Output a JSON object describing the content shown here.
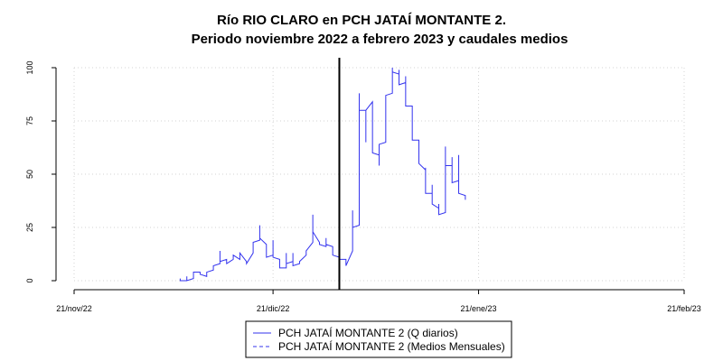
{
  "chart_data": {
    "type": "line",
    "title": "Río RIO CLARO en PCH JATAÍ MONTANTE 2.",
    "subtitle": "Periodo noviembre 2022 a febrero 2023 y caudales medios",
    "xlabel": "",
    "ylabel": "",
    "ylim": [
      0,
      100
    ],
    "yticks": [
      0,
      25,
      50,
      75,
      100
    ],
    "y_tick_labels": [
      "0",
      "25",
      "50",
      "75",
      "100"
    ],
    "x_range": [
      "2022-11-21",
      "2023-02-21"
    ],
    "x_tick_dates": [
      "2022-11-21",
      "2022-12-21",
      "2023-01-21",
      "2023-02-21"
    ],
    "x_tick_labels": [
      "21/nov/22",
      "21/dic/22",
      "21/ene/23",
      "21/feb/23"
    ],
    "grid": true,
    "legend_position": "bottom-center",
    "vline_date": "2022-12-31",
    "colors": {
      "series": "#3333ee",
      "vline": "#000000",
      "grid": "#d3d3d3",
      "axis": "#000000"
    },
    "series": [
      {
        "name": "PCH JATAÍ MONTANTE 2 (Q diarios)",
        "style": "solid",
        "points": [
          [
            "2022-12-07",
            1
          ],
          [
            "2022-12-07",
            0
          ],
          [
            "2022-12-08",
            0
          ],
          [
            "2022-12-08",
            2
          ],
          [
            "2022-12-08",
            0
          ],
          [
            "2022-12-09",
            1
          ],
          [
            "2022-12-09",
            4
          ],
          [
            "2022-12-10",
            4
          ],
          [
            "2022-12-10",
            3
          ],
          [
            "2022-12-11",
            2
          ],
          [
            "2022-12-11",
            4
          ],
          [
            "2022-12-12",
            5
          ],
          [
            "2022-12-12",
            7
          ],
          [
            "2022-12-13",
            8
          ],
          [
            "2022-12-13",
            14
          ],
          [
            "2022-12-13",
            9
          ],
          [
            "2022-12-14",
            10
          ],
          [
            "2022-12-14",
            8
          ],
          [
            "2022-12-15",
            10
          ],
          [
            "2022-12-15",
            12
          ],
          [
            "2022-12-16",
            10
          ],
          [
            "2022-12-16",
            13
          ],
          [
            "2022-12-17",
            9
          ],
          [
            "2022-12-17",
            8
          ],
          [
            "2022-12-18",
            13
          ],
          [
            "2022-12-18",
            18
          ],
          [
            "2022-12-19",
            19
          ],
          [
            "2022-12-19",
            26
          ],
          [
            "2022-12-19",
            20
          ],
          [
            "2022-12-20",
            17
          ],
          [
            "2022-12-20",
            11
          ],
          [
            "2022-12-21",
            12
          ],
          [
            "2022-12-21",
            19
          ],
          [
            "2022-12-21",
            11
          ],
          [
            "2022-12-22",
            10
          ],
          [
            "2022-12-22",
            6
          ],
          [
            "2022-12-23",
            6
          ],
          [
            "2022-12-23",
            13
          ],
          [
            "2022-12-23",
            8
          ],
          [
            "2022-12-24",
            9
          ],
          [
            "2022-12-24",
            13
          ],
          [
            "2022-12-24",
            7
          ],
          [
            "2022-12-25",
            8
          ],
          [
            "2022-12-25",
            9
          ],
          [
            "2022-12-26",
            12
          ],
          [
            "2022-12-26",
            14
          ],
          [
            "2022-12-27",
            18
          ],
          [
            "2022-12-27",
            23
          ],
          [
            "2022-12-27",
            31
          ],
          [
            "2022-12-27",
            23
          ],
          [
            "2022-12-28",
            18
          ],
          [
            "2022-12-28",
            17
          ],
          [
            "2022-12-29",
            16
          ],
          [
            "2022-12-29",
            20
          ],
          [
            "2022-12-29",
            17
          ],
          [
            "2022-12-30",
            16
          ],
          [
            "2022-12-30",
            12
          ],
          [
            "2022-12-31",
            11
          ],
          [
            "2022-12-31",
            10
          ],
          [
            "2023-01-01",
            10
          ],
          [
            "2023-01-01",
            7
          ],
          [
            "2023-01-02",
            14
          ],
          [
            "2023-01-02",
            16
          ],
          [
            "2023-01-02",
            33
          ],
          [
            "2023-01-02",
            25
          ],
          [
            "2023-01-03",
            26
          ],
          [
            "2023-01-03",
            42
          ],
          [
            "2023-01-03",
            88
          ],
          [
            "2023-01-03",
            80
          ],
          [
            "2023-01-04",
            80
          ],
          [
            "2023-01-04",
            65
          ],
          [
            "2023-01-04",
            80
          ],
          [
            "2023-01-05",
            84
          ],
          [
            "2023-01-05",
            60
          ],
          [
            "2023-01-06",
            59
          ],
          [
            "2023-01-06",
            54
          ],
          [
            "2023-01-06",
            64
          ],
          [
            "2023-01-07",
            65
          ],
          [
            "2023-01-07",
            87
          ],
          [
            "2023-01-08",
            88
          ],
          [
            "2023-01-08",
            100
          ],
          [
            "2023-01-08",
            98
          ],
          [
            "2023-01-09",
            97
          ],
          [
            "2023-01-09",
            99
          ],
          [
            "2023-01-09",
            92
          ],
          [
            "2023-01-10",
            93
          ],
          [
            "2023-01-10",
            96
          ],
          [
            "2023-01-10",
            82
          ],
          [
            "2023-01-11",
            82
          ],
          [
            "2023-01-11",
            66
          ],
          [
            "2023-01-12",
            66
          ],
          [
            "2023-01-12",
            55
          ],
          [
            "2023-01-13",
            52
          ],
          [
            "2023-01-13",
            53
          ],
          [
            "2023-01-13",
            41
          ],
          [
            "2023-01-14",
            41
          ],
          [
            "2023-01-14",
            45
          ],
          [
            "2023-01-14",
            36
          ],
          [
            "2023-01-15",
            34
          ],
          [
            "2023-01-15",
            36
          ],
          [
            "2023-01-15",
            31
          ],
          [
            "2023-01-16",
            32
          ],
          [
            "2023-01-16",
            63
          ],
          [
            "2023-01-16",
            54
          ],
          [
            "2023-01-17",
            54
          ],
          [
            "2023-01-17",
            58
          ],
          [
            "2023-01-17",
            46
          ],
          [
            "2023-01-18",
            47
          ],
          [
            "2023-01-18",
            59
          ],
          [
            "2023-01-18",
            41
          ],
          [
            "2023-01-19",
            40
          ],
          [
            "2023-01-19",
            38
          ]
        ]
      },
      {
        "name": "PCH JATAÍ MONTANTE 2 (Medios Mensuales)",
        "style": "dashed",
        "points": []
      }
    ]
  }
}
